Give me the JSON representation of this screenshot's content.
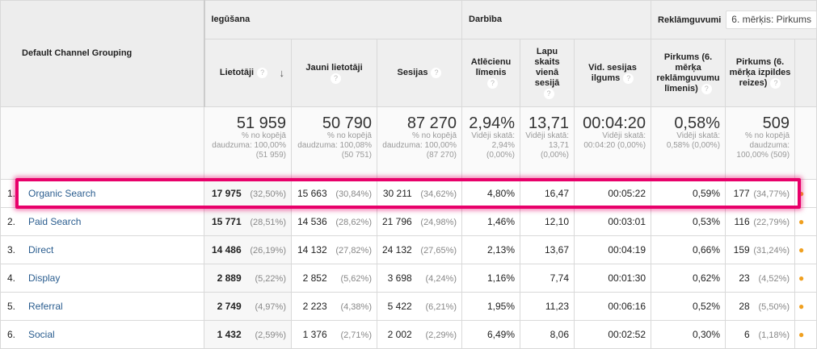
{
  "header": {
    "dimension": "Default Channel Grouping",
    "groups": {
      "acquisition": "Iegūšana",
      "behavior": "Darbība",
      "conversions": "Reklāmguvumi"
    },
    "goal_select": "6. mērķis: Pirkums",
    "columns": [
      "Lietotāji",
      "Jauni lietotāji",
      "Sesijas",
      "Atlēcienu līmenis",
      "Lapu skaits vienā sesijā",
      "Vid. sesijas ilgums",
      "Pirkums (6. mērķa reklāmguvumu līmenis)",
      "Pirkums (6. mērķa izpildes reizes)"
    ]
  },
  "totals": [
    {
      "value": "51 959",
      "note": "% no kopējā daudzuma: 100,00% (51 959)"
    },
    {
      "value": "50 790",
      "note": "% no kopējā daudzuma: 100,08% (50 751)"
    },
    {
      "value": "87 270",
      "note": "% no kopējā daudzuma: 100,00% (87 270)"
    },
    {
      "value": "2,94%",
      "note": "Vidēji skatā: 2,94% (0,00%)"
    },
    {
      "value": "13,71",
      "note": "Vidēji skatā: 13,71 (0,00%)"
    },
    {
      "value": "00:04:20",
      "note": "Vidēji skatā: 00:04:20 (0,00%)"
    },
    {
      "value": "0,58%",
      "note": "Vidēji skatā: 0,58% (0,00%)"
    },
    {
      "value": "509",
      "note": "% no kopējā daudzuma: 100,00% (509)"
    }
  ],
  "rows": [
    {
      "n": "1.",
      "channel": "Organic Search",
      "users": "17 975",
      "users_p": "(32,50%)",
      "new": "15 663",
      "new_p": "(30,84%)",
      "sessions": "30 211",
      "sessions_p": "(34,62%)",
      "bounce": "4,80%",
      "pages": "16,47",
      "duration": "00:05:22",
      "conv_rate": "0,59%",
      "conv": "177",
      "conv_p": "(34,77%)"
    },
    {
      "n": "2.",
      "channel": "Paid Search",
      "users": "15 771",
      "users_p": "(28,51%)",
      "new": "14 536",
      "new_p": "(28,62%)",
      "sessions": "21 796",
      "sessions_p": "(24,98%)",
      "bounce": "1,46%",
      "pages": "12,10",
      "duration": "00:03:01",
      "conv_rate": "0,53%",
      "conv": "116",
      "conv_p": "(22,79%)"
    },
    {
      "n": "3.",
      "channel": "Direct",
      "users": "14 486",
      "users_p": "(26,19%)",
      "new": "14 132",
      "new_p": "(27,82%)",
      "sessions": "24 132",
      "sessions_p": "(27,65%)",
      "bounce": "2,13%",
      "pages": "13,67",
      "duration": "00:04:19",
      "conv_rate": "0,66%",
      "conv": "159",
      "conv_p": "(31,24%)"
    },
    {
      "n": "4.",
      "channel": "Display",
      "users": "2 889",
      "users_p": "(5,22%)",
      "new": "2 852",
      "new_p": "(5,62%)",
      "sessions": "3 698",
      "sessions_p": "(4,24%)",
      "bounce": "1,16%",
      "pages": "7,74",
      "duration": "00:01:30",
      "conv_rate": "0,62%",
      "conv": "23",
      "conv_p": "(4,52%)"
    },
    {
      "n": "5.",
      "channel": "Referral",
      "users": "2 749",
      "users_p": "(4,97%)",
      "new": "2 223",
      "new_p": "(4,38%)",
      "sessions": "5 422",
      "sessions_p": "(6,21%)",
      "bounce": "1,95%",
      "pages": "11,23",
      "duration": "00:06:16",
      "conv_rate": "0,52%",
      "conv": "28",
      "conv_p": "(5,50%)"
    },
    {
      "n": "6.",
      "channel": "Social",
      "users": "1 432",
      "users_p": "(2,59%)",
      "new": "1 376",
      "new_p": "(2,71%)",
      "sessions": "2 002",
      "sessions_p": "(2,29%)",
      "bounce": "6,49%",
      "pages": "8,06",
      "duration": "00:02:52",
      "conv_rate": "0,30%",
      "conv": "6",
      "conv_p": "(1,18%)"
    }
  ],
  "colors": {
    "highlight": "#e8006a",
    "link": "#2a5d8f"
  }
}
